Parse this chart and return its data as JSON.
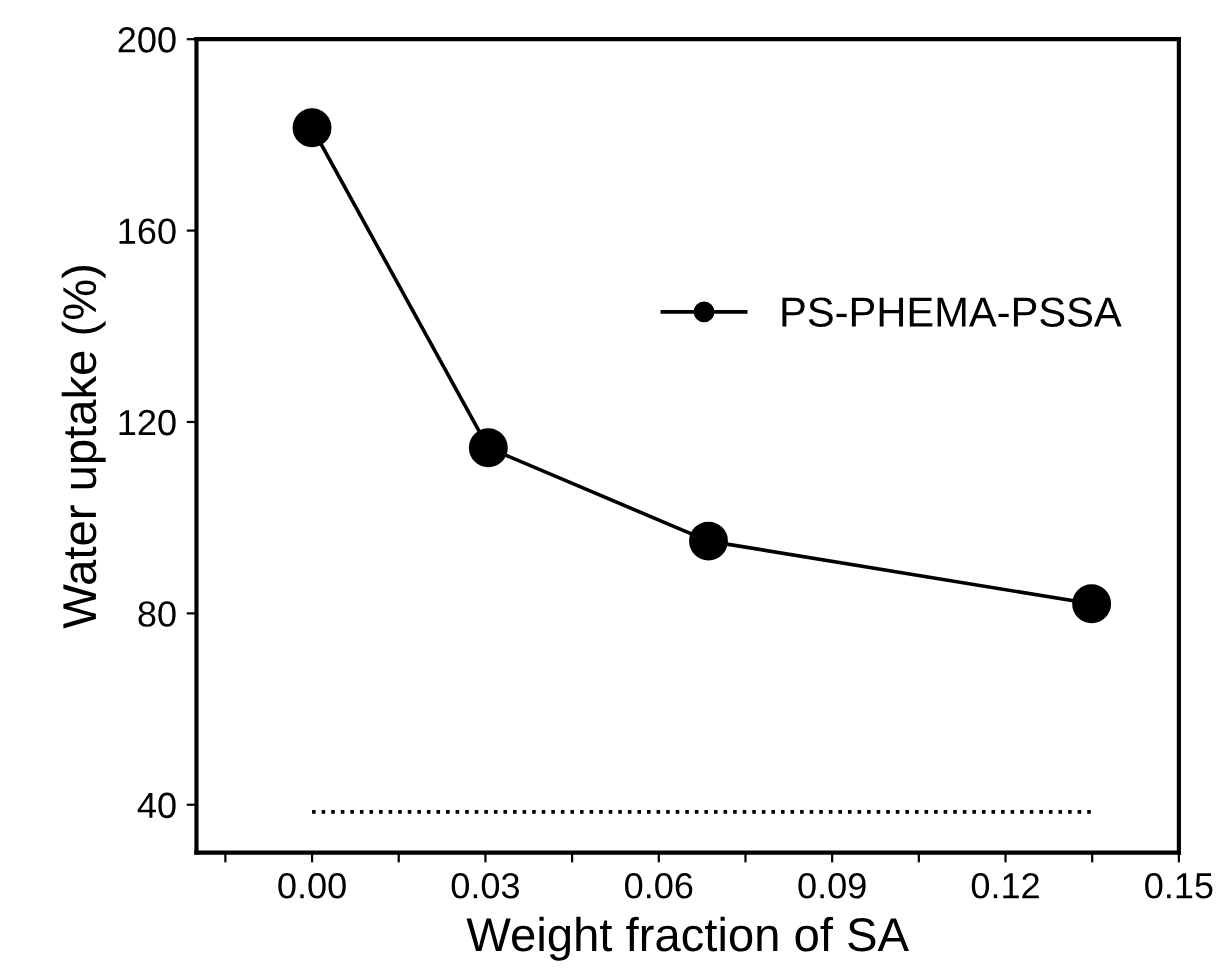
{
  "chart_data": {
    "type": "line",
    "xlabel": "Weight fraction of SA",
    "ylabel": "Water uptake (%)",
    "xlim": [
      -0.02,
      0.15
    ],
    "ylim": [
      30,
      200
    ],
    "xticks": [
      {
        "value": -0.015,
        "label": null
      },
      {
        "value": 0,
        "label": "0.00"
      },
      {
        "value": 0.015,
        "label": null
      },
      {
        "value": 0.03,
        "label": "0.03"
      },
      {
        "value": 0.045,
        "label": null
      },
      {
        "value": 0.06,
        "label": "0.06"
      },
      {
        "value": 0.075,
        "label": null
      },
      {
        "value": 0.09,
        "label": "0.09"
      },
      {
        "value": 0.105,
        "label": null
      },
      {
        "value": 0.12,
        "label": "0.12"
      },
      {
        "value": 0.135,
        "label": null
      },
      {
        "value": 0.15,
        "label": "0.15"
      }
    ],
    "yticks": [
      40,
      80,
      120,
      160,
      200
    ],
    "series": [
      {
        "name": "PS-PHEMA-PSSA",
        "color": "#000000",
        "x": [
          0,
          0.0305,
          0.0686,
          0.1349
        ],
        "values": [
          181.5,
          114.6,
          95.1,
          82.0
        ],
        "marker": "circle",
        "line_style": "solid"
      },
      {
        "color": "#000000",
        "x": [
          0,
          0.135
        ],
        "values": [
          38.5,
          38.5
        ],
        "marker": "none",
        "line_style": "dotted"
      }
    ],
    "legend": "top right",
    "grid": false
  }
}
